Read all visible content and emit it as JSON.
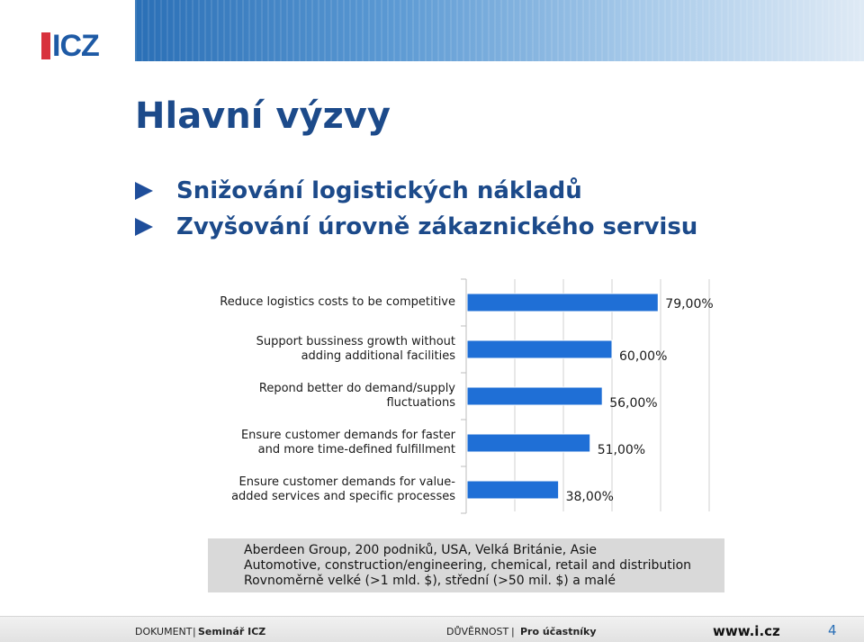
{
  "header": {
    "logo_text": "ICZ"
  },
  "title": "Hlavní výzvy",
  "bullets": [
    "Snižování logistických nákladů",
    "Zvyšování úrovně zákaznického servisu"
  ],
  "chart_data": {
    "type": "bar",
    "orientation": "horizontal",
    "categories": [
      "Reduce logistics costs to be competitive",
      "Support bussiness growth without adding additional facilities",
      "Repond better do demand/supply fluctuations",
      "Ensure customer demands for faster and more time-defined fulfillment",
      "Ensure customer demands for value-added services and specific processes"
    ],
    "category_lines": [
      [
        "Reduce logistics costs to be competitive"
      ],
      [
        "Support bussiness growth without",
        "adding additional facilities"
      ],
      [
        "Repond better do demand/supply",
        "fluctuations"
      ],
      [
        "Ensure customer demands for faster",
        "and more time-defined fulfillment"
      ],
      [
        "Ensure customer demands for value-",
        "added services and specific processes"
      ]
    ],
    "values": [
      79,
      60,
      56,
      51,
      38
    ],
    "value_labels": [
      "79,00%",
      "60,00%",
      "56,00%",
      "51,00%",
      "38,00%"
    ],
    "xlim": [
      0,
      100
    ],
    "grid": true,
    "bar_color": "#1f6fd6",
    "legend": "none"
  },
  "source": {
    "lines": [
      "Aberdeen Group, 200 podniků, USA, Velká Británie, Asie",
      "Automotive, construction/engineering, chemical, retail and distribution",
      "Rovnoměrně velké (>1 mld. $), střední (>50 mil. $) a malé"
    ]
  },
  "footer": {
    "doc_label": "DOKUMENT",
    "doc_name": "Seminář ICZ",
    "confidentiality_label": "DŮVĚRNOST",
    "confidentiality_value": "Pro účastníky",
    "website": "www.i.cz",
    "page_number": "4"
  }
}
